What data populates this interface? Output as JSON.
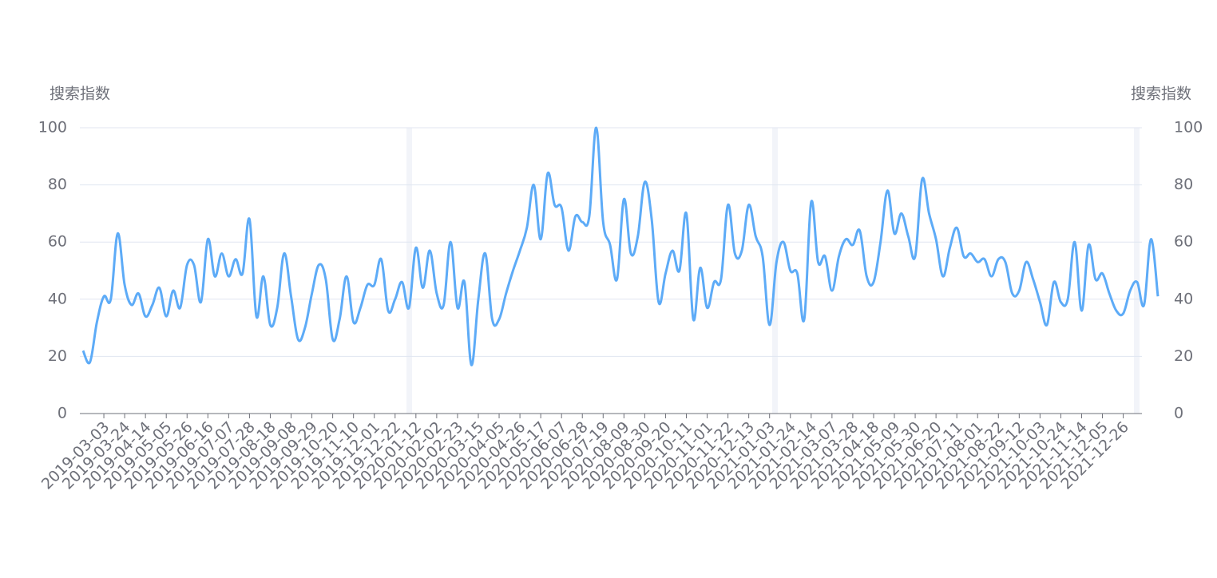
{
  "chart_data": {
    "type": "line",
    "y_label": "搜索指数",
    "y2_label": "搜索指数",
    "categories": [
      null,
      null,
      null,
      "2019-03-03",
      null,
      null,
      "2019-03-24",
      null,
      null,
      "2019-04-14",
      null,
      null,
      "2019-05-05",
      null,
      null,
      "2019-05-26",
      null,
      null,
      "2019-06-16",
      null,
      null,
      "2019-07-07",
      null,
      null,
      "2019-07-28",
      null,
      null,
      "2019-08-18",
      null,
      null,
      "2019-09-08",
      null,
      null,
      "2019-09-29",
      null,
      null,
      "2019-10-20",
      null,
      null,
      "2019-11-10",
      null,
      null,
      "2019-12-01",
      null,
      null,
      "2019-12-22",
      null,
      null,
      "2020-01-12",
      null,
      null,
      "2020-02-02",
      null,
      null,
      "2020-02-23",
      null,
      null,
      "2020-03-15",
      null,
      null,
      "2020-04-05",
      null,
      null,
      "2020-04-26",
      null,
      null,
      "2020-05-17",
      null,
      null,
      "2020-06-07",
      null,
      null,
      "2020-06-28",
      null,
      null,
      "2020-07-19",
      null,
      null,
      "2020-08-09",
      null,
      null,
      "2020-08-30",
      null,
      null,
      "2020-09-20",
      null,
      null,
      "2020-10-11",
      null,
      null,
      "2020-11-01",
      null,
      null,
      "2020-11-22",
      null,
      null,
      "2020-12-13",
      null,
      null,
      "2021-01-03",
      null,
      null,
      "2021-01-24",
      null,
      null,
      "2021-02-14",
      null,
      null,
      "2021-03-07",
      null,
      null,
      "2021-03-28",
      null,
      null,
      "2021-04-18",
      null,
      null,
      "2021-05-09",
      null,
      null,
      "2021-05-30",
      null,
      null,
      "2021-06-20",
      null,
      null,
      "2021-07-11",
      null,
      null,
      "2021-08-01",
      null,
      null,
      "2021-08-22",
      null,
      null,
      "2021-09-12",
      null,
      null,
      "2021-10-03",
      null,
      null,
      "2021-10-24",
      null,
      null,
      "2021-11-14",
      null,
      null,
      "2021-12-05",
      null,
      null,
      "2021-12-26",
      null,
      null,
      null,
      null,
      null
    ],
    "series": [
      {
        "color": "#5dabf7",
        "values": [
          22,
          18,
          32,
          41,
          40,
          63,
          45,
          38,
          42,
          34,
          38,
          44,
          34,
          43,
          37,
          52,
          52,
          39,
          61,
          48,
          56,
          48,
          54,
          49,
          68,
          34,
          48,
          31,
          37,
          56,
          41,
          26,
          30,
          42,
          52,
          47,
          26,
          33,
          48,
          32,
          37,
          45,
          45,
          54,
          36,
          40,
          46,
          37,
          58,
          44,
          57,
          42,
          38,
          60,
          37,
          46,
          17,
          40,
          56,
          33,
          33,
          42,
          50,
          57,
          65,
          80,
          61,
          84,
          73,
          72,
          57,
          69,
          67,
          69,
          100,
          67,
          59,
          47,
          75,
          56,
          62,
          81,
          68,
          39,
          49,
          57,
          50,
          70,
          33,
          51,
          37,
          46,
          47,
          73,
          56,
          57,
          73,
          62,
          55,
          31,
          53,
          60,
          50,
          49,
          33,
          74,
          53,
          55,
          43,
          55,
          61,
          59,
          64,
          48,
          46,
          60,
          78,
          63,
          70,
          62,
          55,
          82,
          70,
          61,
          48,
          58,
          65,
          55,
          56,
          53,
          54,
          48,
          54,
          53,
          42,
          43,
          53,
          47,
          39,
          31,
          46,
          39,
          40,
          60,
          36,
          59,
          47,
          49,
          42,
          36,
          35,
          43,
          46,
          38,
          61,
          41
        ]
      }
    ],
    "ylim": [
      0,
      100
    ],
    "yticks": [
      0,
      20,
      40,
      60,
      80,
      100
    ],
    "y2lim": [
      0,
      100
    ],
    "y2ticks": [
      0,
      20,
      40,
      60,
      80,
      100
    ],
    "grid": true,
    "smooth": true
  }
}
